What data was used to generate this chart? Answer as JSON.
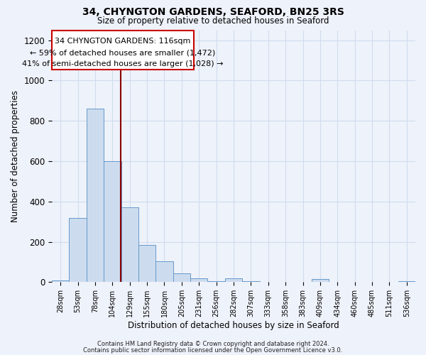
{
  "title": "34, CHYNGTON GARDENS, SEAFORD, BN25 3RS",
  "subtitle": "Size of property relative to detached houses in Seaford",
  "xlabel": "Distribution of detached houses by size in Seaford",
  "ylabel": "Number of detached properties",
  "bar_labels": [
    "28sqm",
    "53sqm",
    "78sqm",
    "104sqm",
    "129sqm",
    "155sqm",
    "180sqm",
    "205sqm",
    "231sqm",
    "256sqm",
    "282sqm",
    "307sqm",
    "333sqm",
    "358sqm",
    "383sqm",
    "409sqm",
    "434sqm",
    "460sqm",
    "485sqm",
    "511sqm",
    "536sqm"
  ],
  "bar_values": [
    10,
    320,
    860,
    600,
    370,
    185,
    105,
    45,
    20,
    5,
    20,
    5,
    0,
    0,
    0,
    15,
    0,
    0,
    0,
    0,
    5
  ],
  "bar_color": "#ccdcee",
  "bar_edgecolor": "#6699cc",
  "grid_color": "#d0dcee",
  "background_color": "#eef2fa",
  "vline_color": "#8b0000",
  "vline_xindex": 3.48,
  "annotation_text_line1": "34 CHYNGTON GARDENS: 116sqm",
  "annotation_text_line2": "← 59% of detached houses are smaller (1,472)",
  "annotation_text_line3": "41% of semi-detached houses are larger (1,028) →",
  "ylim": [
    0,
    1250
  ],
  "yticks": [
    0,
    200,
    400,
    600,
    800,
    1000,
    1200
  ],
  "footer_line1": "Contains HM Land Registry data © Crown copyright and database right 2024.",
  "footer_line2": "Contains public sector information licensed under the Open Government Licence v3.0."
}
